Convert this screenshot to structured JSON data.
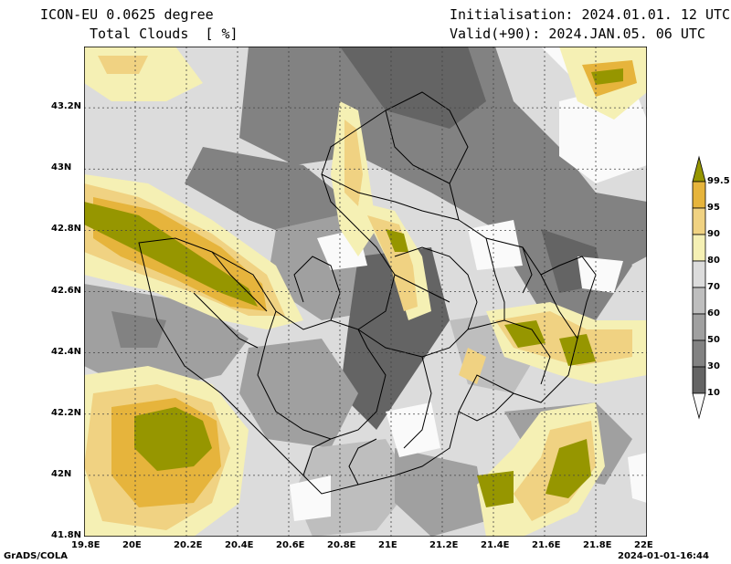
{
  "header": {
    "model": "ICON-EU 0.0625 degree",
    "field": "Total Clouds  [ %]",
    "init": "Initialisation: 2024.01.01. 12 UTC",
    "valid": "Valid(+90): 2024.JAN.05. 06 UTC"
  },
  "map": {
    "lon_ticks": [
      "19.8E",
      "20E",
      "20.2E",
      "20.4E",
      "20.6E",
      "20.8E",
      "21E",
      "21.2E",
      "21.4E",
      "21.6E",
      "21.8E",
      "22E"
    ],
    "lat_ticks": [
      "43.2N",
      "43N",
      "42.8N",
      "42.6N",
      "42.4N",
      "42.2N",
      "42N",
      "41.8N"
    ],
    "lon_range": [
      19.8,
      22.0
    ],
    "lat_range": [
      41.8,
      43.4
    ],
    "grid": true
  },
  "colorbar": {
    "levels": [
      "99.5",
      "95",
      "90",
      "80",
      "70",
      "60",
      "50",
      "30",
      "10"
    ],
    "colors": {
      "c0": "#fafafa",
      "c10": "#646464",
      "c30": "#828282",
      "c50": "#a0a0a0",
      "c60": "#bebebe",
      "c70": "#dcdcdc",
      "c80": "#f5f0b4",
      "c90": "#f0d282",
      "c95": "#e6b43c",
      "c99": "#969600"
    }
  },
  "footer": {
    "left": "GrADS/COLA",
    "right": "2024-01-01-16:44"
  }
}
